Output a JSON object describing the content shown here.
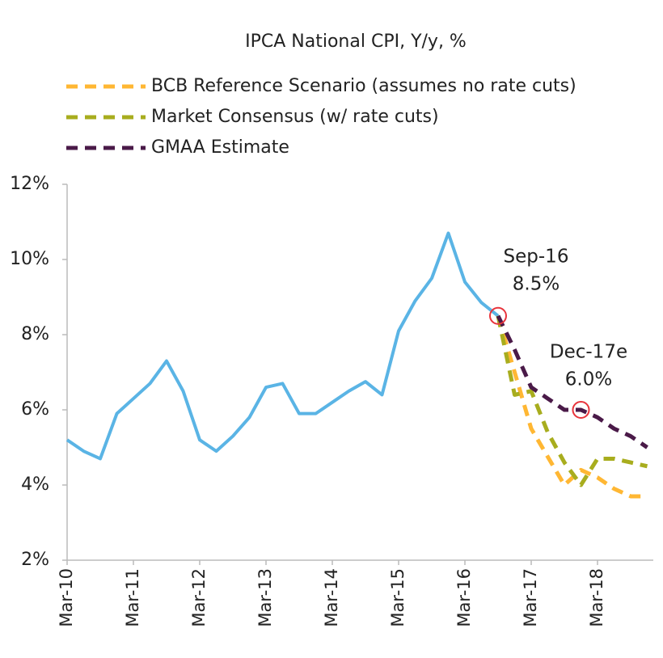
{
  "chart_data": {
    "type": "line",
    "title": "IPCA National CPI, Y/y, %",
    "categories": [
      "Mar-10",
      null,
      null,
      null,
      "Mar-11",
      null,
      null,
      null,
      "Mar-12",
      null,
      null,
      null,
      "Mar-13",
      null,
      null,
      null,
      "Mar-14",
      null,
      null,
      null,
      "Mar-15",
      null,
      null,
      null,
      "Mar-16",
      null,
      null,
      null,
      "Mar-17",
      null,
      null,
      null,
      "Mar-18",
      null,
      null,
      null
    ],
    "series": [
      {
        "name": null,
        "color": "#5ab4e5",
        "dashed": false,
        "values": [
          5.2,
          4.9,
          4.7,
          5.9,
          6.3,
          6.7,
          7.3,
          6.5,
          5.2,
          4.9,
          5.3,
          5.8,
          6.6,
          6.7,
          5.9,
          5.9,
          6.2,
          6.5,
          6.75,
          6.4,
          8.1,
          8.9,
          9.5,
          10.7,
          9.4,
          8.85,
          8.5,
          null,
          null,
          null,
          null,
          null,
          null,
          null,
          null,
          null
        ]
      },
      {
        "name": "BCB Reference Scenario (assumes no rate cuts)",
        "color": "#ffb733",
        "dashed": true,
        "values": [
          null,
          null,
          null,
          null,
          null,
          null,
          null,
          null,
          null,
          null,
          null,
          null,
          null,
          null,
          null,
          null,
          null,
          null,
          null,
          null,
          null,
          null,
          null,
          null,
          null,
          null,
          8.5,
          7.0,
          5.5,
          4.75,
          4.0,
          4.4,
          4.2,
          3.9,
          3.7,
          3.7
        ]
      },
      {
        "name": "Market Consensus (w/ rate cuts)",
        "color": "#a8ad1e",
        "dashed": true,
        "values": [
          null,
          null,
          null,
          null,
          null,
          null,
          null,
          null,
          null,
          null,
          null,
          null,
          null,
          null,
          null,
          null,
          null,
          null,
          null,
          null,
          null,
          null,
          null,
          null,
          null,
          null,
          8.5,
          6.4,
          6.5,
          5.4,
          4.6,
          4.0,
          4.7,
          4.7,
          4.6,
          4.5
        ]
      },
      {
        "name": "GMAA Estimate",
        "color": "#4a1a48",
        "dashed": true,
        "values": [
          null,
          null,
          null,
          null,
          null,
          null,
          null,
          null,
          null,
          null,
          null,
          null,
          null,
          null,
          null,
          null,
          null,
          null,
          null,
          null,
          null,
          null,
          null,
          null,
          null,
          null,
          8.5,
          7.6,
          6.6,
          6.3,
          6.0,
          6.0,
          5.8,
          5.5,
          5.3,
          5.0
        ]
      }
    ],
    "annotations": [
      {
        "text": "Sep-16",
        "value": 8.5,
        "value_label": "8.5%"
      },
      {
        "text": "Dec-17e",
        "value": 6.0,
        "value_label": "6.0%"
      }
    ],
    "ylim": [
      2,
      12
    ],
    "yticks": [
      {
        "value": 2,
        "label": "2%"
      },
      {
        "value": 4,
        "label": "4%"
      },
      {
        "value": 6,
        "label": "6%"
      },
      {
        "value": 8,
        "label": "8%"
      },
      {
        "value": 10,
        "label": "10%"
      },
      {
        "value": 12,
        "label": "12%"
      }
    ],
    "grid": false,
    "legend": "top-left"
  }
}
